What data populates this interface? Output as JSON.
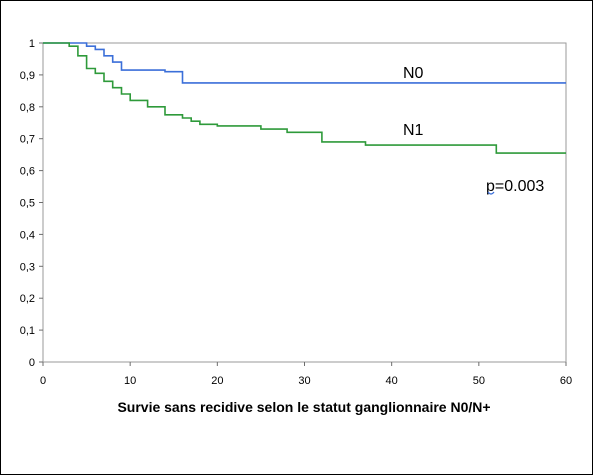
{
  "chart_data": {
    "type": "line",
    "title": "",
    "xlabel": "Survie sans recidive selon le statut ganglionnaire N0/N+",
    "ylabel": "",
    "xlim": [
      0,
      60
    ],
    "ylim": [
      0,
      1
    ],
    "x_ticks": [
      0,
      10,
      20,
      30,
      40,
      50,
      60
    ],
    "y_ticks": [
      0,
      0.1,
      0.2,
      0.3,
      0.4,
      0.5,
      0.6,
      0.7,
      0.8,
      0.9,
      1
    ],
    "y_tick_labels": [
      "0",
      "0,1",
      "0,2",
      "0,3",
      "0,4",
      "0,5",
      "0,6",
      "0,7",
      "0,8",
      "0,9",
      "1"
    ],
    "grid": false,
    "step": true,
    "series": [
      {
        "name": "N0",
        "color": "#3b6fd9",
        "x": [
          0,
          3,
          5,
          6,
          7,
          8,
          9,
          14,
          16,
          60
        ],
        "y": [
          1,
          1,
          0.99,
          0.98,
          0.96,
          0.94,
          0.915,
          0.91,
          0.875,
          0.875
        ]
      },
      {
        "name": "N1",
        "color": "#2e9a3a",
        "x": [
          0,
          3,
          4,
          5,
          6,
          7,
          8,
          9,
          10,
          12,
          14,
          16,
          17,
          18,
          20,
          25,
          28,
          32,
          37,
          52,
          60
        ],
        "y": [
          1,
          0.99,
          0.96,
          0.92,
          0.905,
          0.88,
          0.86,
          0.84,
          0.82,
          0.8,
          0.775,
          0.765,
          0.755,
          0.745,
          0.74,
          0.73,
          0.72,
          0.69,
          0.68,
          0.655,
          0.655
        ]
      }
    ],
    "annotations": [
      {
        "text": "p=0.003"
      }
    ]
  }
}
